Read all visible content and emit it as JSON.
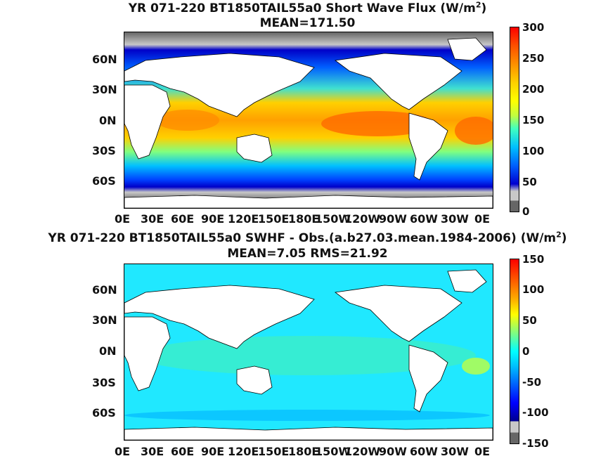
{
  "panels": [
    {
      "title_prefix": "YR 071-220 BT1850TAIL55a0  Short Wave Flux (W/m",
      "title_sup": "2",
      "title_suffix": ")",
      "subtitle": "MEAN=171.50",
      "lat_labels": [
        "60N",
        "30N",
        "0N",
        "30S",
        "60S"
      ],
      "lon_labels": [
        "0E",
        "30E",
        "60E",
        "90E",
        "120E",
        "150E",
        "180E",
        "150W",
        "120W",
        "90W",
        "60W",
        "30W",
        "0E"
      ],
      "colorbar_ticks": [
        "300",
        "250",
        "200",
        "150",
        "100",
        "50",
        "0"
      ]
    },
    {
      "title_prefix": "YR 071-220 BT1850TAIL55a0 SWHF - Obs.(a.b27.03.mean.1984-2006) (W/m",
      "title_sup": "2",
      "title_suffix": ")",
      "subtitle": "MEAN=7.05 RMS=21.92",
      "lat_labels": [
        "60N",
        "30N",
        "0N",
        "30S",
        "60S"
      ],
      "lon_labels": [
        "0E",
        "30E",
        "60E",
        "90E",
        "120E",
        "150E",
        "180E",
        "150W",
        "120W",
        "90W",
        "60W",
        "30W",
        "0E"
      ],
      "colorbar_ticks": [
        "150",
        "100",
        "50",
        "0",
        "-50",
        "-100",
        "-150"
      ]
    }
  ],
  "colors": {
    "land": "#ffffff",
    "missing": "#666666",
    "gray_light": "#c8c8c8",
    "jet": [
      "#00008f",
      "#0000ff",
      "#0080ff",
      "#00ffff",
      "#80ff80",
      "#ffff00",
      "#ff8000",
      "#ff0000",
      "#800000"
    ]
  }
}
